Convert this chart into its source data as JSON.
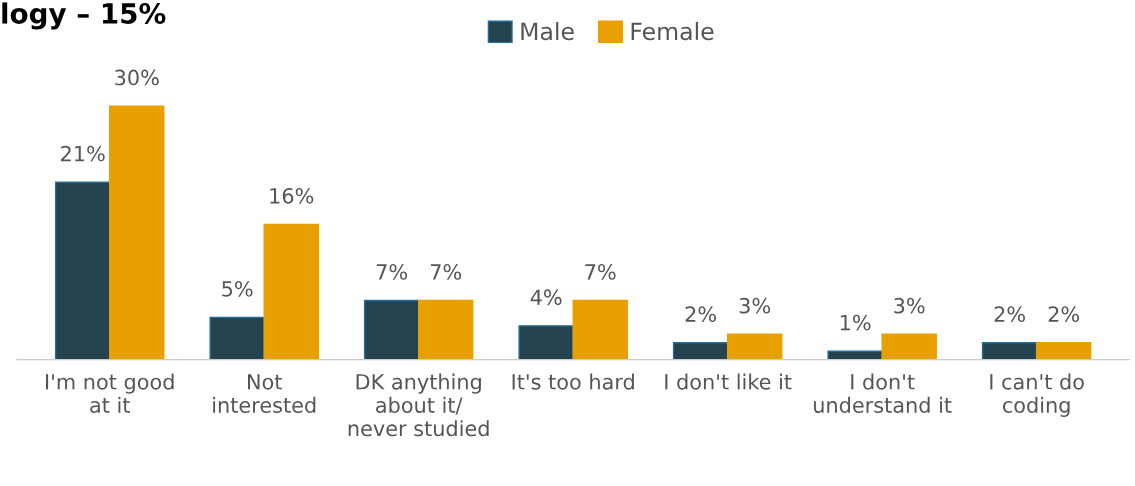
{
  "chart_data": {
    "type": "bar",
    "title": "logy – 15%",
    "categories": [
      "I'm not good\nat it",
      "Not\ninterested",
      "DK anything\nabout it/\nnever studied",
      "It's too hard",
      "I don't like it",
      "I don't\nunderstand it",
      "I can't do\ncoding"
    ],
    "series": [
      {
        "name": "Male",
        "color": "#24434f",
        "values": [
          21,
          5,
          7,
          4,
          2,
          1,
          2
        ],
        "value_labels": [
          "21%",
          "5%",
          "7%",
          "4%",
          "2%",
          "1%",
          "2%"
        ]
      },
      {
        "name": "Female",
        "color": "#e8a000",
        "values": [
          30,
          16,
          7,
          7,
          3,
          3,
          2
        ],
        "value_labels": [
          "30%",
          "16%",
          "7%",
          "7%",
          "3%",
          "3%",
          "2%"
        ]
      }
    ],
    "legend": "top",
    "grid": false
  }
}
